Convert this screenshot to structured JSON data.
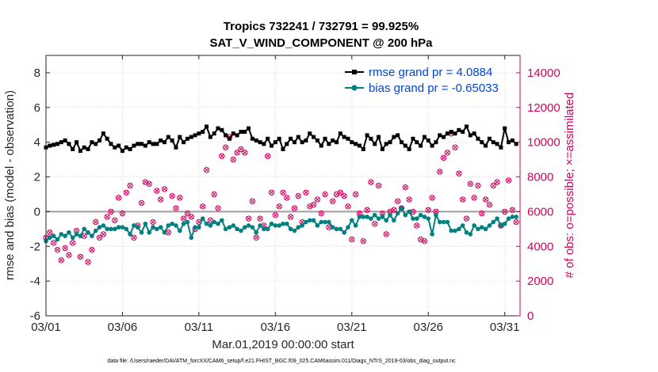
{
  "figure": {
    "title_line1": "Tropics 732241 / 732791 = 99.925%",
    "title_line2": "SAT_V_WIND_COMPONENT @ 200 hPa",
    "footnote": "data file: /Users/raeder/DAI/ATM_forcXX/CAM6_setup/f.e21.FHIST_BGC.f09_025.CAM6assim.011/Diags_NTrS_2019-03/obs_diag_output.nc"
  },
  "chart_data": {
    "type": "line",
    "title": "Tropics 732241 / 732791 = 99.925%\nSAT_V_WIND_COMPONENT @ 200 hPa",
    "xlabel": "Mar.01,2019 00:00:00 start",
    "ylabel": "rmse and bias (model - observation)",
    "y2label": "# of obs: o=possible; ×=assimilated",
    "xlim": [
      1.0,
      32.0
    ],
    "ylim": [
      -6,
      9
    ],
    "y2lim": [
      0,
      15000
    ],
    "x_ticks": [
      1,
      6,
      11,
      16,
      21,
      26,
      31
    ],
    "x_tick_labels": [
      "03/01",
      "03/06",
      "03/11",
      "03/16",
      "03/21",
      "03/26",
      "03/31"
    ],
    "y_ticks": [
      -6,
      -4,
      -2,
      0,
      2,
      4,
      6,
      8
    ],
    "y_tick_labels": [
      "-6",
      "-4",
      "-2",
      "0",
      "2",
      "4",
      "6",
      "8"
    ],
    "y2_ticks": [
      0,
      2000,
      4000,
      6000,
      8000,
      10000,
      12000,
      14000
    ],
    "y2_tick_labels": [
      "0",
      "2000",
      "4000",
      "6000",
      "8000",
      "10000",
      "12000",
      "14000"
    ],
    "grid": true,
    "zero_line": 0,
    "legend_position": "top-right",
    "colors": {
      "rmse": "#000000",
      "bias": "#008080",
      "obs": "#d6005e",
      "legend_text": "#0047d4",
      "zero_line": "#9e9e9e",
      "grid": "#d9d9d9"
    },
    "series": [
      {
        "name": "rmse grand pr = 4.0884",
        "axis": "left",
        "color": "#000000",
        "marker": "square",
        "x": [
          1.0,
          1.25,
          1.5,
          1.75,
          2.0,
          2.25,
          2.5,
          2.75,
          3.0,
          3.25,
          3.5,
          3.75,
          4.0,
          4.25,
          4.5,
          4.75,
          5.0,
          5.25,
          5.5,
          5.75,
          6.0,
          6.25,
          6.5,
          6.75,
          7.0,
          7.25,
          7.5,
          7.75,
          8.0,
          8.25,
          8.5,
          8.75,
          9.0,
          9.25,
          9.5,
          9.75,
          10.0,
          10.25,
          10.5,
          10.75,
          11.0,
          11.25,
          11.5,
          11.75,
          12.0,
          12.25,
          12.5,
          12.75,
          13.0,
          13.25,
          13.5,
          13.75,
          14.0,
          14.25,
          14.5,
          14.75,
          15.0,
          15.25,
          15.5,
          15.75,
          16.0,
          16.25,
          16.5,
          16.75,
          17.0,
          17.25,
          17.5,
          17.75,
          18.0,
          18.25,
          18.5,
          18.75,
          19.0,
          19.25,
          19.5,
          19.75,
          20.0,
          20.25,
          20.5,
          20.75,
          21.0,
          21.25,
          21.5,
          21.75,
          22.0,
          22.25,
          22.5,
          22.75,
          23.0,
          23.25,
          23.5,
          23.75,
          24.0,
          24.25,
          24.5,
          24.75,
          25.0,
          25.25,
          25.5,
          25.75,
          26.0,
          26.25,
          26.5,
          26.75,
          27.0,
          27.25,
          27.5,
          27.75,
          28.0,
          28.25,
          28.5,
          28.75,
          29.0,
          29.25,
          29.5,
          29.75,
          30.0,
          30.25,
          30.5,
          30.75,
          31.0,
          31.25,
          31.5,
          31.75
        ],
        "values": [
          3.7,
          3.8,
          3.85,
          3.9,
          4.0,
          4.1,
          3.9,
          3.6,
          4.0,
          3.5,
          3.7,
          3.6,
          4.0,
          3.9,
          4.1,
          4.5,
          4.2,
          3.9,
          3.7,
          3.8,
          3.5,
          3.7,
          3.6,
          3.8,
          3.9,
          3.9,
          3.8,
          4.0,
          3.9,
          3.9,
          4.1,
          4.0,
          4.3,
          4.1,
          3.7,
          4.3,
          4.0,
          4.2,
          4.3,
          4.4,
          4.5,
          4.6,
          4.9,
          4.3,
          4.5,
          4.8,
          4.7,
          4.4,
          4.2,
          4.5,
          4.4,
          4.6,
          4.6,
          4.8,
          4.2,
          4.1,
          4.0,
          3.9,
          4.2,
          3.8,
          4.0,
          4.2,
          3.6,
          3.9,
          4.2,
          4.0,
          4.3,
          4.0,
          4.1,
          4.5,
          4.3,
          4.1,
          3.8,
          4.2,
          3.9,
          4.1,
          4.0,
          4.5,
          4.3,
          4.2,
          4.0,
          3.9,
          3.8,
          3.6,
          4.4,
          4.2,
          3.9,
          4.3,
          3.6,
          3.9,
          4.0,
          4.3,
          4.4,
          4.0,
          3.8,
          3.6,
          4.2,
          4.0,
          3.8,
          4.3,
          4.1,
          3.8,
          4.0,
          4.4,
          4.3,
          4.5,
          4.6,
          4.5,
          4.7,
          4.6,
          4.9,
          4.4,
          4.5,
          4.2,
          4.0,
          3.8,
          4.2,
          4.0,
          3.9,
          3.7,
          4.8,
          4.0,
          4.1,
          3.9
        ]
      },
      {
        "name": "bias grand pr = -0.65033",
        "axis": "left",
        "color": "#008080",
        "marker": "circle",
        "x": [
          1.0,
          1.25,
          1.5,
          1.75,
          2.0,
          2.25,
          2.5,
          2.75,
          3.0,
          3.25,
          3.5,
          3.75,
          4.0,
          4.25,
          4.5,
          4.75,
          5.0,
          5.25,
          5.5,
          5.75,
          6.0,
          6.25,
          6.5,
          6.75,
          7.0,
          7.25,
          7.5,
          7.75,
          8.0,
          8.25,
          8.5,
          8.75,
          9.0,
          9.25,
          9.5,
          9.75,
          10.0,
          10.25,
          10.5,
          10.75,
          11.0,
          11.25,
          11.5,
          11.75,
          12.0,
          12.25,
          12.5,
          12.75,
          13.0,
          13.25,
          13.5,
          13.75,
          14.0,
          14.25,
          14.5,
          14.75,
          15.0,
          15.25,
          15.5,
          15.75,
          16.0,
          16.25,
          16.5,
          16.75,
          17.0,
          17.25,
          17.5,
          17.75,
          18.0,
          18.25,
          18.5,
          18.75,
          19.0,
          19.25,
          19.5,
          19.75,
          20.0,
          20.25,
          20.5,
          20.75,
          21.0,
          21.25,
          21.5,
          21.75,
          22.0,
          22.25,
          22.5,
          22.75,
          23.0,
          23.25,
          23.5,
          23.75,
          24.0,
          24.25,
          24.5,
          24.75,
          25.0,
          25.25,
          25.5,
          25.75,
          26.0,
          26.25,
          26.5,
          26.75,
          27.0,
          27.25,
          27.5,
          27.75,
          28.0,
          28.25,
          28.5,
          28.75,
          29.0,
          29.25,
          29.5,
          29.75,
          30.0,
          30.25,
          30.5,
          30.75,
          31.0,
          31.25,
          31.5,
          31.75
        ],
        "values": [
          -1.7,
          -1.5,
          -1.4,
          -1.6,
          -1.3,
          -1.4,
          -1.2,
          -1.5,
          -1.3,
          -1.4,
          -1.0,
          -1.2,
          -1.4,
          -1.1,
          -0.9,
          -0.8,
          -1.0,
          -1.0,
          -1.0,
          -0.9,
          -0.9,
          -1.0,
          -1.3,
          -0.8,
          -0.9,
          -1.2,
          -0.7,
          -1.2,
          -0.9,
          -1.0,
          -0.9,
          -1.2,
          -0.8,
          -0.7,
          -0.8,
          -1.1,
          -0.7,
          -0.6,
          -1.5,
          -0.9,
          -0.9,
          -0.4,
          -0.7,
          -0.8,
          -0.6,
          -0.7,
          -0.5,
          -1.0,
          -0.9,
          -0.8,
          -1.0,
          -1.1,
          -0.9,
          -0.8,
          -0.9,
          -1.2,
          -0.8,
          -1.0,
          -1.0,
          -0.7,
          -0.8,
          -0.8,
          -0.7,
          -0.7,
          -1.0,
          -1.1,
          -0.9,
          -0.8,
          -0.6,
          -0.5,
          -0.5,
          -0.8,
          -0.6,
          -0.6,
          -0.6,
          -0.9,
          -1.0,
          -1.0,
          -1.2,
          -0.9,
          -0.5,
          -0.8,
          -0.3,
          -0.3,
          -0.3,
          -0.4,
          -0.2,
          -0.4,
          -0.3,
          -0.5,
          -0.2,
          -0.5,
          -0.1,
          0.2,
          -0.2,
          0.0,
          -0.4,
          -0.4,
          -0.2,
          -0.3,
          -0.4,
          -1.3,
          -0.2,
          -0.6,
          -0.6,
          -0.6,
          -1.1,
          -1.1,
          -1.0,
          -0.8,
          -1.2,
          -1.3,
          -0.8,
          -1.0,
          -0.9,
          -1.0,
          -0.8,
          -0.6,
          -0.4,
          -0.8,
          -0.7,
          -0.4,
          -0.3,
          -0.3
        ]
      },
      {
        "name": "# of obs (possible / assimilated)",
        "axis": "right",
        "color": "#d6005e",
        "marker": "circle-with-x",
        "x": [
          1.0,
          1.25,
          1.5,
          1.75,
          2.0,
          2.25,
          2.5,
          2.75,
          3.0,
          3.25,
          3.5,
          3.75,
          4.0,
          4.25,
          4.5,
          4.75,
          5.0,
          5.25,
          5.5,
          5.75,
          6.0,
          6.25,
          6.5,
          6.75,
          7.0,
          7.25,
          7.5,
          7.75,
          8.0,
          8.25,
          8.5,
          8.75,
          9.0,
          9.25,
          9.5,
          9.75,
          10.0,
          10.25,
          10.5,
          10.75,
          11.0,
          11.25,
          11.5,
          11.75,
          12.0,
          12.25,
          12.5,
          12.75,
          13.0,
          13.25,
          13.5,
          13.75,
          14.0,
          14.25,
          14.5,
          14.75,
          15.0,
          15.25,
          15.5,
          15.75,
          16.0,
          16.25,
          16.5,
          16.75,
          17.0,
          17.25,
          17.5,
          17.75,
          18.0,
          18.25,
          18.5,
          18.75,
          19.0,
          19.25,
          19.5,
          19.75,
          20.0,
          20.25,
          20.5,
          20.75,
          21.0,
          21.25,
          21.5,
          21.75,
          22.0,
          22.25,
          22.5,
          22.75,
          23.0,
          23.25,
          23.5,
          23.75,
          24.0,
          24.25,
          24.5,
          24.75,
          25.0,
          25.25,
          25.5,
          25.75,
          26.0,
          26.25,
          26.5,
          26.75,
          27.0,
          27.25,
          27.5,
          27.75,
          28.0,
          28.25,
          28.5,
          28.75,
          29.0,
          29.25,
          29.5,
          29.75,
          30.0,
          30.25,
          30.5,
          30.75,
          31.0,
          31.25,
          31.5,
          31.75
        ],
        "values": [
          4500,
          4800,
          4200,
          3800,
          3200,
          3900,
          3500,
          4200,
          4900,
          3400,
          4600,
          3100,
          3800,
          5400,
          4500,
          4700,
          5700,
          6000,
          5500,
          6800,
          5900,
          7100,
          7500,
          4500,
          5200,
          6500,
          7700,
          7600,
          5400,
          7200,
          6700,
          7300,
          4800,
          6900,
          6200,
          6800,
          5600,
          5900,
          5700,
          5000,
          5400,
          6300,
          8400,
          5500,
          7000,
          6200,
          9200,
          9700,
          10300,
          9000,
          9400,
          9600,
          9400,
          5600,
          6600,
          4500,
          5600,
          5200,
          9200,
          7100,
          5800,
          6300,
          7100,
          6800,
          5700,
          6200,
          6900,
          5400,
          7100,
          6300,
          6400,
          6700,
          5900,
          7000,
          5100,
          6600,
          7000,
          7100,
          6900,
          6300,
          4400,
          7000,
          5900,
          4300,
          6100,
          7700,
          5300,
          7500,
          5900,
          4700,
          6000,
          6100,
          6600,
          6200,
          7400,
          6700,
          6000,
          5200,
          4400,
          4300,
          6100,
          6800,
          6000,
          8300,
          9100,
          9400,
          10500,
          9700,
          8200,
          6700,
          5600,
          7600,
          6800,
          7500,
          5900,
          6700,
          6400,
          7500,
          7700,
          5200,
          6000,
          7800,
          6100,
          5400
        ]
      }
    ]
  }
}
